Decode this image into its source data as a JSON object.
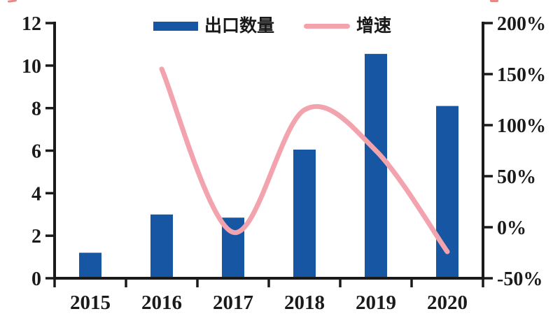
{
  "chart_data": {
    "type": "bar+line combo",
    "categories": [
      "2015",
      "2016",
      "2017",
      "2018",
      "2019",
      "2020"
    ],
    "series": [
      {
        "name": "出口数量",
        "type": "bar",
        "axis": "left",
        "values": [
          1.2,
          3.0,
          2.85,
          6.05,
          10.55,
          8.1
        ]
      },
      {
        "name": "增速",
        "type": "line",
        "axis": "right",
        "values_pct": [
          null,
          155,
          -5,
          115,
          75,
          -24
        ]
      }
    ],
    "left_axis": {
      "min": 0,
      "max": 12,
      "tick_values": [
        0,
        2,
        4,
        6,
        8,
        10,
        12
      ],
      "tick_labels": [
        "0",
        "2",
        "4",
        "6",
        "8",
        "10",
        "12"
      ]
    },
    "right_axis": {
      "min_pct": -50,
      "max_pct": 200,
      "tick_values_pct": [
        -50,
        0,
        50,
        100,
        150,
        200
      ],
      "tick_labels": [
        "-50%",
        "0%",
        "50%",
        "100%",
        "150%",
        "200%"
      ]
    },
    "legend": {
      "bar_label": "出口数量",
      "line_label": "增速"
    },
    "grid": false,
    "legend_position": "top-center",
    "line_smoothing": "spline"
  },
  "colors": {
    "bar": "#1656a3",
    "line": "#f2a3ad",
    "axis": "#1a1a1a",
    "text": "#1a1a1a",
    "background": "#ffffff",
    "artifact_red": "#d94a43"
  }
}
